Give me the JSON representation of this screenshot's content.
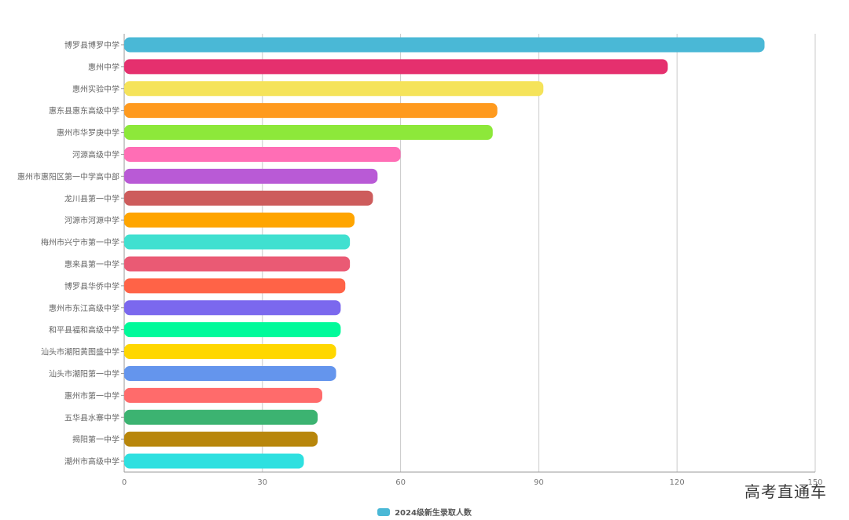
{
  "watermark": "高考直通车",
  "chart_data": {
    "type": "bar",
    "orientation": "horizontal",
    "categories": [
      "博罗县博罗中学",
      "惠州中学",
      "惠州实验中学",
      "惠东县惠东高级中学",
      "惠州市华罗庚中学",
      "河源高级中学",
      "惠州市惠阳区第一中学高中部",
      "龙川县第一中学",
      "河源市河源中学",
      "梅州市兴宁市第一中学",
      "惠来县第一中学",
      "博罗县华侨中学",
      "惠州市东江高级中学",
      "和平县福和高级中学",
      "汕头市潮阳黄图盛中学",
      "汕头市潮阳第一中学",
      "惠州市第一中学",
      "五华县水寨中学",
      "揭阳第一中学",
      "潮州市高级中学"
    ],
    "series": [
      {
        "name": "2024级新生录取人数",
        "values": [
          139,
          118,
          91,
          81,
          80,
          60,
          55,
          54,
          50,
          49,
          49,
          48,
          47,
          47,
          46,
          46,
          43,
          42,
          42,
          39
        ]
      }
    ],
    "colors": [
      "#4ab8d6",
      "#e5306e",
      "#f5e35a",
      "#ff9a1e",
      "#8de83a",
      "#ff6eb5",
      "#b95ad6",
      "#cd5c5c",
      "#ffa500",
      "#40e0d0",
      "#ea5a74",
      "#ff6347",
      "#7b68ee",
      "#00fa9a",
      "#ffd700",
      "#6495ed",
      "#ff6b6b",
      "#3cb371",
      "#b8860b",
      "#2ee0e0"
    ],
    "legend_color": "#4ab8d6",
    "xlim": [
      0,
      150
    ],
    "xticks": [
      0,
      30,
      60,
      90,
      120,
      150
    ],
    "grid": true,
    "legend_position": "bottom"
  }
}
